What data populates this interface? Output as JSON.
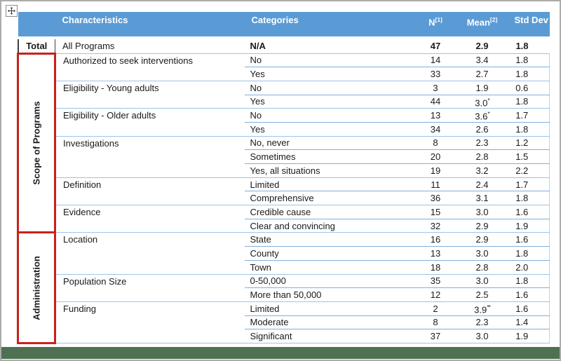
{
  "window": {
    "move_handle_icon": "move-icon"
  },
  "table": {
    "headers": {
      "characteristics": "Characteristics",
      "categories": "Categories",
      "n": "N",
      "n_superscript": "[1]",
      "mean": "Mean",
      "mean_superscript": "[2]",
      "std_dev": "Std Dev"
    },
    "total_row": {
      "label": "Total",
      "characteristic": "All Programs",
      "category": "N/A",
      "n": "47",
      "mean": "2.9",
      "std": "1.8"
    },
    "groups": [
      {
        "label": "Scope of Programs",
        "characteristics": [
          {
            "name": "Authorized to seek interventions",
            "rows": [
              [
                "No",
                "14",
                "3.4",
                "1.8"
              ],
              [
                "Yes",
                "33",
                "2.7",
                "1.8"
              ]
            ]
          },
          {
            "name": "Eligibility - Young adults",
            "rows": [
              [
                "No",
                "3",
                "1.9",
                "0.6"
              ],
              [
                "Yes",
                "44",
                "3.0*",
                "1.8"
              ]
            ]
          },
          {
            "name": "Eligibility - Older adults",
            "rows": [
              [
                "No",
                "13",
                "3.6*",
                "1.7"
              ],
              [
                "Yes",
                "34",
                "2.6",
                "1.8"
              ]
            ]
          },
          {
            "name": "Investigations",
            "rows": [
              [
                "No, never",
                "8",
                "2.3",
                "1.2"
              ],
              [
                "Sometimes",
                "20",
                "2.8",
                "1.5"
              ],
              [
                "Yes, all situations",
                "19",
                "3.2",
                "2.2"
              ]
            ]
          },
          {
            "name": "Definition",
            "rows": [
              [
                "Limited",
                "11",
                "2.4",
                "1.7"
              ],
              [
                "Comprehensive",
                "36",
                "3.1",
                "1.8"
              ]
            ]
          },
          {
            "name": "Evidence",
            "rows": [
              [
                "Credible cause",
                "15",
                "3.0",
                "1.6"
              ],
              [
                "Clear and convincing",
                "32",
                "2.9",
                "1.9"
              ]
            ]
          }
        ]
      },
      {
        "label": "Administration",
        "characteristics": [
          {
            "name": "Location",
            "rows": [
              [
                "State",
                "16",
                "2.9",
                "1.6"
              ],
              [
                "County",
                "13",
                "3.0",
                "1.8"
              ],
              [
                "Town",
                "18",
                "2.8",
                "2.0"
              ]
            ]
          },
          {
            "name": "Population Size",
            "rows": [
              [
                "0-50,000",
                "35",
                "3.0",
                "1.8"
              ],
              [
                "More than 50,000",
                "12",
                "2.5",
                "1.6"
              ]
            ]
          },
          {
            "name": "Funding",
            "rows": [
              [
                "Limited",
                "2",
                "3.9**",
                "1.6"
              ],
              [
                "Moderate",
                "8",
                "2.3",
                "1.4"
              ],
              [
                "Significant",
                "37",
                "3.0",
                "1.9"
              ]
            ]
          }
        ]
      }
    ]
  },
  "colors": {
    "header_blue": "#5B9BD5",
    "row_separator_blue": "#7FAFDC",
    "group_separator_blue": "#9DC3E6",
    "bracket_red": "#C9211B",
    "footer_green": "#4E7152",
    "frame_gray": "#ABABAB"
  }
}
